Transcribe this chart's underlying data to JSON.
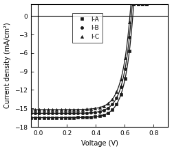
{
  "title": "",
  "xlabel": "Voltage (V)",
  "ylabel": "Current density (mA/cm²)",
  "xlim": [
    -0.05,
    0.9
  ],
  "ylim": [
    -18,
    2
  ],
  "xticks": [
    0.0,
    0.2,
    0.4,
    0.6,
    0.8
  ],
  "yticks": [
    0,
    -3,
    -6,
    -9,
    -12,
    -15,
    -18
  ],
  "series": [
    {
      "label": "I-A",
      "marker": "s",
      "color": "#1a1a1a",
      "Jsc": -16.5,
      "Voc": 0.655,
      "FF": 0.68,
      "ideality": 18
    },
    {
      "label": "I-B",
      "marker": "o",
      "color": "#1a1a1a",
      "Jsc": -15.8,
      "Voc": 0.645,
      "FF": 0.67,
      "ideality": 18
    },
    {
      "label": "I-C",
      "marker": "^",
      "color": "#1a1a1a",
      "Jsc": -15.2,
      "Voc": 0.635,
      "FF": 0.66,
      "ideality": 18
    }
  ],
  "n_markers": 28,
  "background_color": "#ffffff"
}
